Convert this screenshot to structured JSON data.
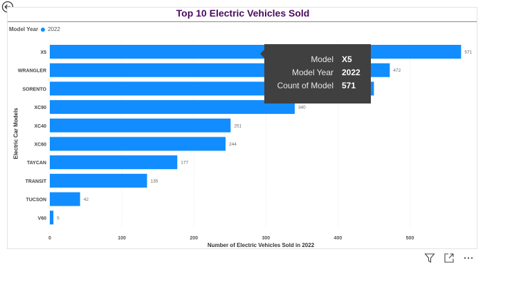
{
  "visual": {
    "title": "Top 10 Electric Vehicles Sold",
    "legend_title": "Model Year",
    "legend_item": "2022",
    "series_color": "#118dff"
  },
  "chart_data": {
    "type": "bar",
    "orientation": "horizontal",
    "title": "Top 10 Electric Vehicles Sold",
    "xlabel": "Number of Electric Vehicles Sold in 2022",
    "ylabel": "Electric Car Models",
    "categories": [
      "X5",
      "WRANGLER",
      "SORENTO",
      "XC90",
      "XC40",
      "XC60",
      "TAYCAN",
      "TRANSIT",
      "TUCSON",
      "V60"
    ],
    "values": [
      571,
      472,
      450,
      340,
      251,
      244,
      177,
      135,
      42,
      5
    ],
    "data_labels": [
      "571",
      "472",
      "",
      "340",
      "251",
      "244",
      "177",
      "135",
      "42",
      "5"
    ],
    "series": [
      {
        "name": "2022",
        "values": [
          571,
          472,
          450,
          340,
          251,
          244,
          177,
          135,
          42,
          5
        ]
      }
    ],
    "xticks": [
      0,
      100,
      200,
      300,
      400,
      500
    ],
    "xlim": [
      0,
      580
    ],
    "grid": true,
    "legend": "top-left"
  },
  "tooltip": {
    "rows": [
      {
        "key": "Model",
        "value": "X5"
      },
      {
        "key": "Model Year",
        "value": "2022"
      },
      {
        "key": "Count of Model",
        "value": "571"
      }
    ]
  },
  "toolbar": {
    "icons": [
      "filter-icon",
      "focus-mode-icon",
      "more-options-icon"
    ]
  }
}
